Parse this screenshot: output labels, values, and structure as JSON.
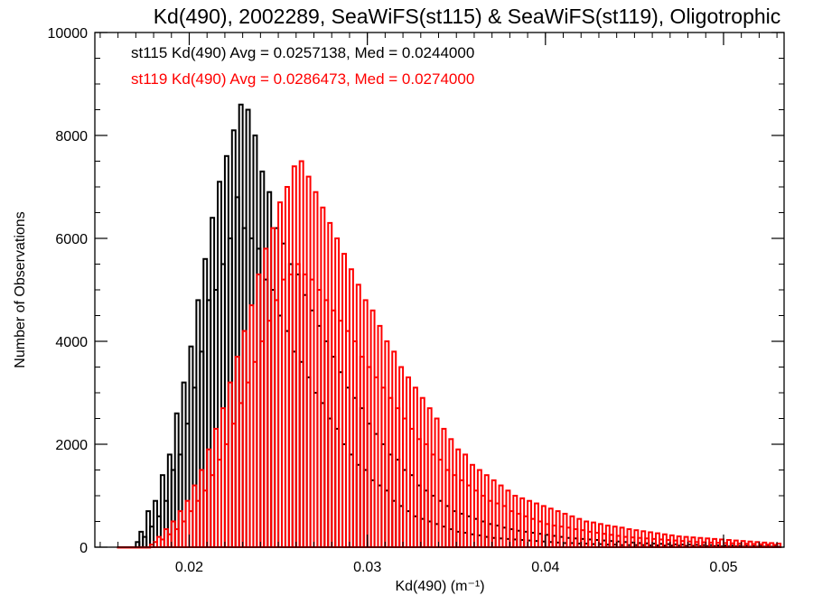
{
  "chart_data": {
    "type": "bar",
    "title": "Kd(490), 2002289, SeaWiFS(st115) & SeaWiFS(st119), Oligotrophic",
    "xlabel": "Kd(490) (m⁻¹)",
    "ylabel": "Number of Observations",
    "xlim": [
      0.0147,
      0.0534
    ],
    "ylim": [
      0,
      10000
    ],
    "xticks": [
      0.02,
      0.03,
      0.04,
      0.05
    ],
    "xtick_labels": [
      "0.02",
      "0.03",
      "0.04",
      "0.05"
    ],
    "yticks": [
      0,
      2000,
      4000,
      6000,
      8000,
      10000
    ],
    "ytick_labels": [
      "0",
      "2000",
      "4000",
      "6000",
      "8000",
      "10000"
    ],
    "x_minor_step": 0.001,
    "y_minor_step": 500,
    "grid": false,
    "bin_start": 0.016,
    "bin_width": 0.0002,
    "legend_placement": "top-left",
    "annotations": [
      {
        "text": "st115 Kd(490) Avg = 0.0257138, Med = 0.0244000",
        "color": "#000000"
      },
      {
        "text": "st119 Kd(490) Avg = 0.0286473, Med = 0.0274000",
        "color": "#ff0000"
      }
    ],
    "series": [
      {
        "name": "st115",
        "color": "#000000",
        "values": [
          0,
          0,
          0,
          0,
          0,
          100,
          300,
          200,
          700,
          400,
          900,
          600,
          1400,
          900,
          1800,
          1500,
          2600,
          1800,
          3200,
          2400,
          3900,
          3100,
          4800,
          3800,
          5600,
          4800,
          6400,
          5000,
          7100,
          5500,
          7600,
          6000,
          8100,
          6800,
          8600,
          6200,
          8500,
          6000,
          8000,
          5800,
          7300,
          5200,
          6900,
          5000,
          6200,
          4500,
          5900,
          4200,
          5500,
          3800,
          5300,
          3600,
          4900,
          3300,
          4600,
          3000,
          4300,
          2800,
          4000,
          2500,
          3700,
          2300,
          3400,
          2000,
          3100,
          1800,
          2900,
          1600,
          2700,
          1500,
          2400,
          1300,
          2200,
          1200,
          2000,
          1100,
          1800,
          900,
          1700,
          800,
          1500,
          700,
          1400,
          600,
          1200,
          550,
          1100,
          500,
          1000,
          450,
          900,
          400,
          800,
          350,
          700,
          300,
          650,
          280,
          600,
          250,
          550,
          230,
          500,
          200,
          450,
          180,
          420,
          170,
          380,
          160,
          350,
          150,
          320,
          140,
          300,
          130,
          280,
          120,
          260,
          110,
          240,
          100,
          220,
          90,
          200,
          80,
          180,
          80,
          170,
          70,
          160,
          70,
          150,
          60,
          140,
          60,
          130,
          50,
          120,
          50,
          110,
          40,
          100,
          40,
          90,
          40,
          80,
          40,
          75,
          35,
          70,
          35,
          65,
          30,
          60,
          30,
          55,
          30,
          50,
          25,
          50,
          25,
          45,
          20,
          40,
          20,
          40,
          20,
          35,
          15,
          30,
          15,
          30,
          15,
          25,
          10,
          25,
          10,
          20,
          10,
          20,
          10,
          15,
          10,
          15,
          10
        ]
      },
      {
        "name": "st119",
        "color": "#ff0000",
        "values": [
          0,
          0,
          0,
          0,
          0,
          0,
          0,
          0,
          0,
          50,
          100,
          200,
          150,
          350,
          250,
          500,
          350,
          700,
          500,
          900,
          700,
          1200,
          900,
          1500,
          1100,
          1900,
          1400,
          2300,
          1700,
          2700,
          2000,
          3200,
          2400,
          3700,
          2800,
          4200,
          3200,
          4700,
          3600,
          5300,
          4000,
          5800,
          4400,
          6200,
          4800,
          6700,
          5200,
          7000,
          5300,
          7400,
          5500,
          7500,
          5300,
          7200,
          5200,
          6900,
          5000,
          6600,
          4800,
          6300,
          4600,
          6000,
          4400,
          5700,
          4200,
          5400,
          4000,
          5100,
          3700,
          4800,
          3500,
          4600,
          3300,
          4300,
          3100,
          4000,
          2900,
          3800,
          2700,
          3500,
          2500,
          3300,
          2300,
          3100,
          2100,
          2900,
          2000,
          2700,
          1800,
          2500,
          1700,
          2300,
          1500,
          2100,
          1400,
          1900,
          1300,
          1800,
          1200,
          1600,
          1100,
          1500,
          1000,
          1400,
          900,
          1300,
          850,
          1200,
          800,
          1100,
          700,
          1000,
          650,
          950,
          600,
          900,
          550,
          850,
          500,
          800,
          450,
          750,
          420,
          700,
          400,
          650,
          380,
          600,
          350,
          550,
          330,
          500,
          300,
          480,
          280,
          450,
          260,
          420,
          240,
          400,
          220,
          380,
          200,
          350,
          190,
          330,
          180,
          310,
          170,
          290,
          160,
          270,
          150,
          250,
          140,
          230,
          130,
          210,
          120,
          200,
          110,
          190,
          100,
          180,
          95,
          170,
          90,
          160,
          85,
          150,
          80,
          140,
          75,
          130,
          70,
          120,
          65,
          110,
          60,
          100,
          55,
          90,
          50,
          80,
          45,
          70
        ]
      }
    ]
  }
}
